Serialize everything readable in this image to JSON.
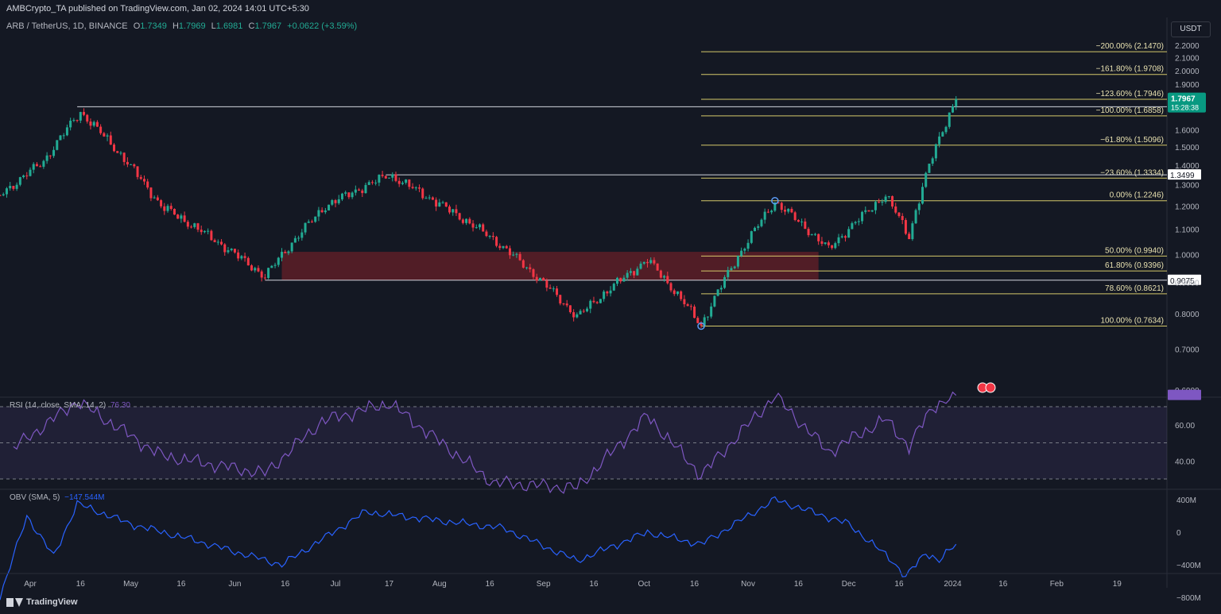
{
  "header": {
    "publisher": "AMBCrypto_TA published on TradingView.com, Jan 02, 2024 14:01 UTC+5:30"
  },
  "symbol": {
    "name": "ARB / TetherUS, 1D, BINANCE",
    "o_label": "O",
    "o": "1.7349",
    "h_label": "H",
    "h": "1.7969",
    "l_label": "L",
    "l": "1.6981",
    "c_label": "C",
    "c": "1.7967",
    "change": "+0.0622 (+3.59%)"
  },
  "currency_button": "USDT",
  "price_badge": {
    "price": "1.7967",
    "countdown": "15:28:38",
    "color": "#089981"
  },
  "colors": {
    "up": "#22ab94",
    "down": "#f23645",
    "fib": "#d4c86a",
    "rsi": "#7e57c2",
    "obv": "#2962ff",
    "zone": "#6b1f28"
  },
  "chart_data": [
    {
      "type": "candlestick",
      "title": "ARB / TetherUS, 1D, BINANCE",
      "ylim": [
        0.6,
        2.2
      ],
      "scale": "log",
      "y_ticks": [
        "2.2000",
        "2.1000",
        "2.0000",
        "1.9000",
        "1.8000",
        "1.6000",
        "1.5000",
        "1.4000",
        "1.3000",
        "1.2000",
        "1.1000",
        "1.0000",
        "0.9000",
        "0.8000",
        "0.7000",
        "0.6000"
      ],
      "x_ticks": [
        "Apr",
        "16",
        "May",
        "16",
        "Jun",
        "16",
        "Jul",
        "17",
        "Aug",
        "16",
        "Sep",
        "16",
        "Oct",
        "16",
        "Nov",
        "16",
        "Dec",
        "16",
        "2024",
        "16",
        "Feb",
        "19"
      ],
      "key_points": [
        {
          "date": "2023-03-23",
          "value": 1.25
        },
        {
          "date": "2023-04-05",
          "value": 1.42
        },
        {
          "date": "2023-04-16",
          "value": 1.71
        },
        {
          "date": "2023-05-10",
          "value": 1.2
        },
        {
          "date": "2023-06-10",
          "value": 0.92
        },
        {
          "date": "2023-06-28",
          "value": 1.2
        },
        {
          "date": "2023-07-17",
          "value": 1.35
        },
        {
          "date": "2023-08-17",
          "value": 1.06
        },
        {
          "date": "2023-09-11",
          "value": 0.79
        },
        {
          "date": "2023-10-02",
          "value": 0.98
        },
        {
          "date": "2023-10-18",
          "value": 0.765
        },
        {
          "date": "2023-11-09",
          "value": 1.22
        },
        {
          "date": "2023-11-25",
          "value": 1.02
        },
        {
          "date": "2023-12-12",
          "value": 1.25
        },
        {
          "date": "2023-12-19",
          "value": 1.07
        },
        {
          "date": "2023-12-26",
          "value": 1.45
        },
        {
          "date": "2024-01-02",
          "value": 1.7967
        }
      ],
      "horizontal_levels": [
        {
          "value": 1.745,
          "label": "1.7450"
        },
        {
          "value": 1.3499,
          "label": "1.3499"
        },
        {
          "value": 0.9075,
          "label": "0.9075"
        }
      ],
      "fib_levels": [
        {
          "label": "−200.00% (2.1470)",
          "value": 2.147
        },
        {
          "label": "−161.80% (1.9708)",
          "value": 1.9708
        },
        {
          "label": "−123.60% (1.7946)",
          "value": 1.7946
        },
        {
          "label": "−100.00% (1.6858)",
          "value": 1.6858
        },
        {
          "label": "−61.80% (1.5096)",
          "value": 1.5096
        },
        {
          "label": "−23.60% (1.3334)",
          "value": 1.3334
        },
        {
          "label": "0.00% (1.2246)",
          "value": 1.2246
        },
        {
          "label": "50.00% (0.9940)",
          "value": 0.994
        },
        {
          "label": "61.80% (0.9396)",
          "value": 0.9396
        },
        {
          "label": "78.60% (0.8621)",
          "value": 0.8621
        },
        {
          "label": "100.00% (0.7634)",
          "value": 0.7634
        }
      ],
      "zone": {
        "from": "2023-06-15",
        "to": "2023-11-22",
        "low": 0.9075,
        "high": 1.01
      }
    },
    {
      "type": "line",
      "title": "RSI (14, close, SMA, 14, 2)",
      "value_label": "76.30",
      "ylim": [
        20,
        80
      ],
      "y_ticks": [
        "60.00",
        "40.00"
      ],
      "bands": [
        70,
        50,
        30
      ],
      "key_points": [
        {
          "date": "2023-03-27",
          "value": 47
        },
        {
          "date": "2023-04-15",
          "value": 73
        },
        {
          "date": "2023-05-10",
          "value": 43
        },
        {
          "date": "2023-06-10",
          "value": 33
        },
        {
          "date": "2023-06-27",
          "value": 62
        },
        {
          "date": "2023-07-17",
          "value": 72
        },
        {
          "date": "2023-08-17",
          "value": 28
        },
        {
          "date": "2023-09-11",
          "value": 25
        },
        {
          "date": "2023-10-02",
          "value": 65
        },
        {
          "date": "2023-10-18",
          "value": 32
        },
        {
          "date": "2023-11-09",
          "value": 76
        },
        {
          "date": "2023-11-25",
          "value": 45
        },
        {
          "date": "2023-12-12",
          "value": 63
        },
        {
          "date": "2023-12-19",
          "value": 48
        },
        {
          "date": "2023-12-26",
          "value": 70
        },
        {
          "date": "2024-01-02",
          "value": 76.3
        }
      ]
    },
    {
      "type": "line",
      "title": "OBV (SMA, 5)",
      "value_label": "−147.544M",
      "ylim": [
        -1000,
        550
      ],
      "y_ticks": [
        "400M",
        "0",
        "−400M",
        "−800M"
      ],
      "key_points": [
        {
          "date": "2023-03-23",
          "value": -800
        },
        {
          "date": "2023-03-31",
          "value": 200
        },
        {
          "date": "2023-04-08",
          "value": -300
        },
        {
          "date": "2023-04-15",
          "value": 350
        },
        {
          "date": "2023-05-01",
          "value": 100
        },
        {
          "date": "2023-05-20",
          "value": -100
        },
        {
          "date": "2023-06-15",
          "value": -400
        },
        {
          "date": "2023-07-10",
          "value": 250
        },
        {
          "date": "2023-08-20",
          "value": 50
        },
        {
          "date": "2023-09-11",
          "value": -350
        },
        {
          "date": "2023-10-02",
          "value": 0
        },
        {
          "date": "2023-10-18",
          "value": -150
        },
        {
          "date": "2023-11-09",
          "value": 400
        },
        {
          "date": "2023-12-01",
          "value": 100
        },
        {
          "date": "2023-12-14",
          "value": -350
        },
        {
          "date": "2023-12-18",
          "value": -550
        },
        {
          "date": "2023-12-24",
          "value": -250
        },
        {
          "date": "2023-12-28",
          "value": -350
        },
        {
          "date": "2024-01-02",
          "value": -147.5
        }
      ]
    }
  ],
  "rsi_label": {
    "name": "RSI (14, close, SMA, 14, 2)",
    "value": "76.30"
  },
  "obv_label": {
    "name": "OBV (SMA, 5)",
    "value": "−147.544M"
  },
  "footer": {
    "brand": "TradingView"
  }
}
